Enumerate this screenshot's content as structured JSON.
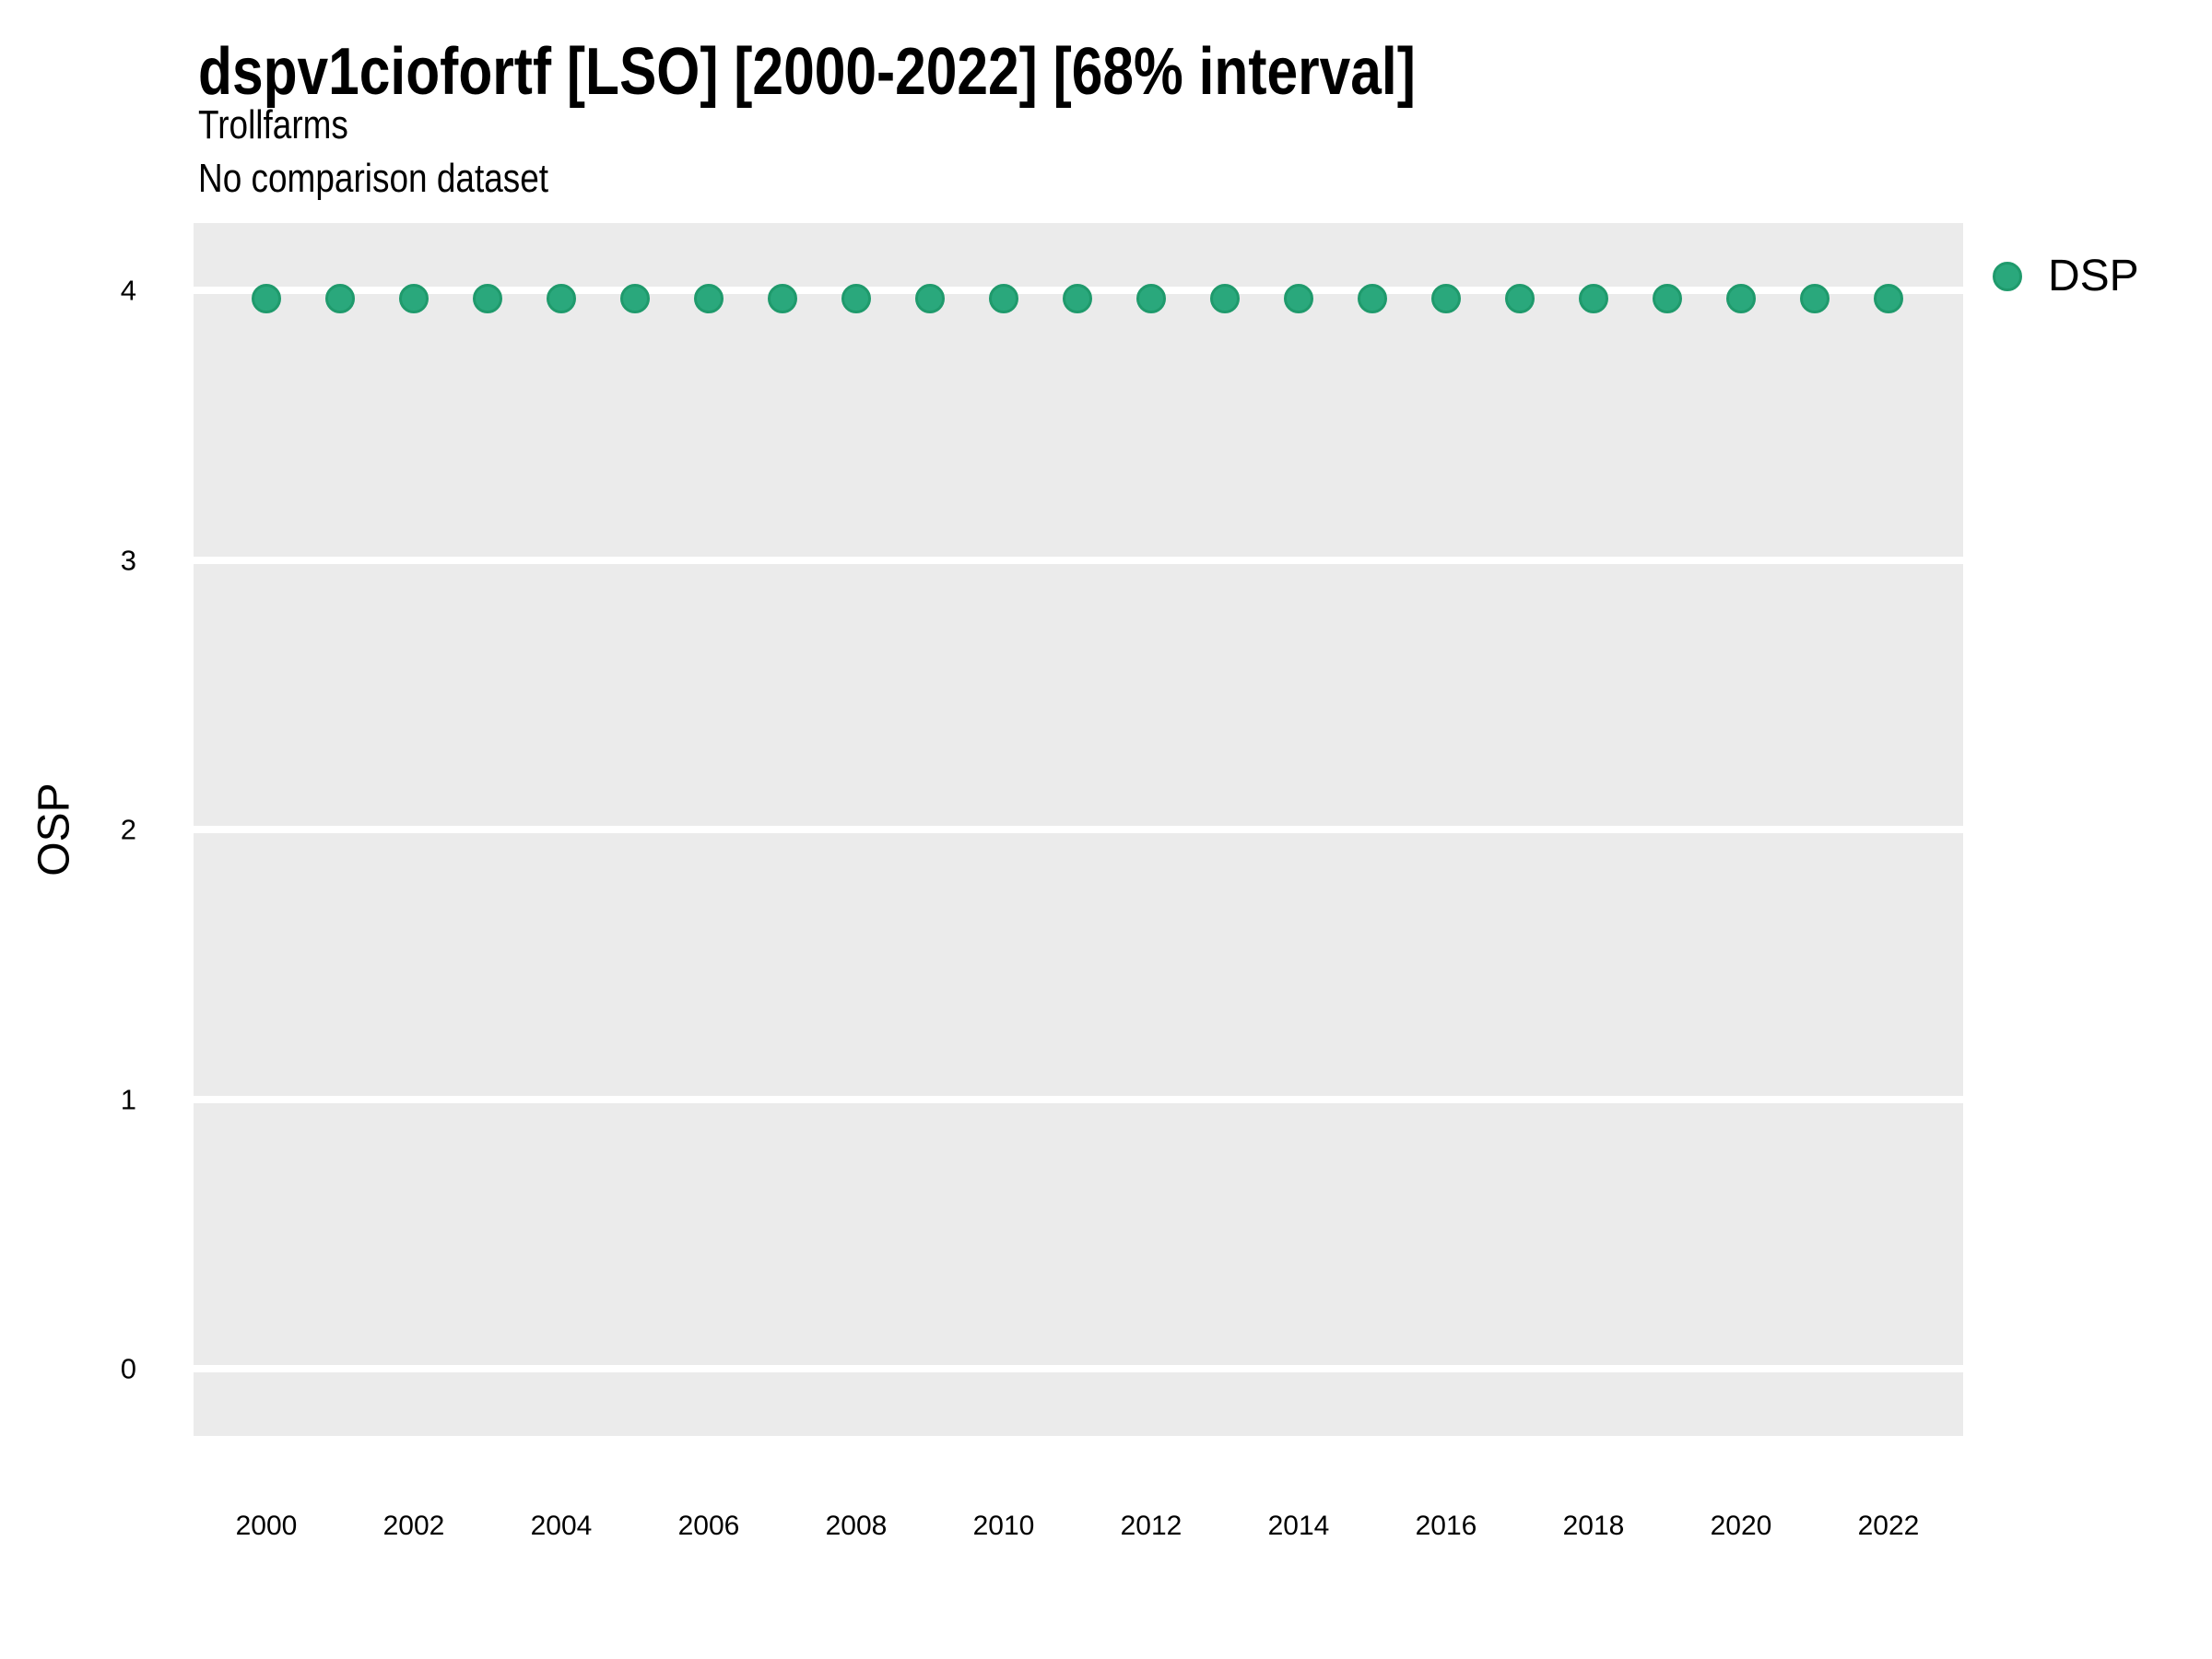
{
  "chart_data": {
    "type": "scatter",
    "title": "dspv1ciofortf [LSO] [2000-2022] [68% interval]",
    "subtitle": "Trollfarms",
    "note": "No comparison dataset",
    "xlabel": "",
    "ylabel": "OSP",
    "x": [
      2000,
      2001,
      2002,
      2003,
      2004,
      2005,
      2006,
      2007,
      2008,
      2009,
      2010,
      2011,
      2012,
      2013,
      2014,
      2015,
      2016,
      2017,
      2018,
      2019,
      2020,
      2021,
      2022
    ],
    "series": [
      {
        "name": "DSP",
        "values": [
          3.97,
          3.97,
          3.97,
          3.97,
          3.97,
          3.97,
          3.97,
          3.97,
          3.97,
          3.97,
          3.97,
          3.97,
          3.97,
          3.97,
          3.97,
          3.97,
          3.97,
          3.97,
          3.97,
          3.97,
          3.97,
          3.97,
          3.97
        ]
      }
    ],
    "xticks": [
      2000,
      2002,
      2004,
      2006,
      2008,
      2010,
      2012,
      2014,
      2016,
      2018,
      2020,
      2022
    ],
    "yticks": [
      0,
      1,
      2,
      3,
      4
    ],
    "xlim": [
      1999,
      2023
    ],
    "ylim": [
      -0.25,
      4.25
    ],
    "grid": "major-horizontal-white-on-gray",
    "legend_position": "right-top",
    "colors": {
      "point_fill": "#2aa87c",
      "point_stroke": "#1f9a6c",
      "panel_bg": "#ebebeb",
      "gridline": "#ffffff",
      "text": "#000000"
    }
  }
}
